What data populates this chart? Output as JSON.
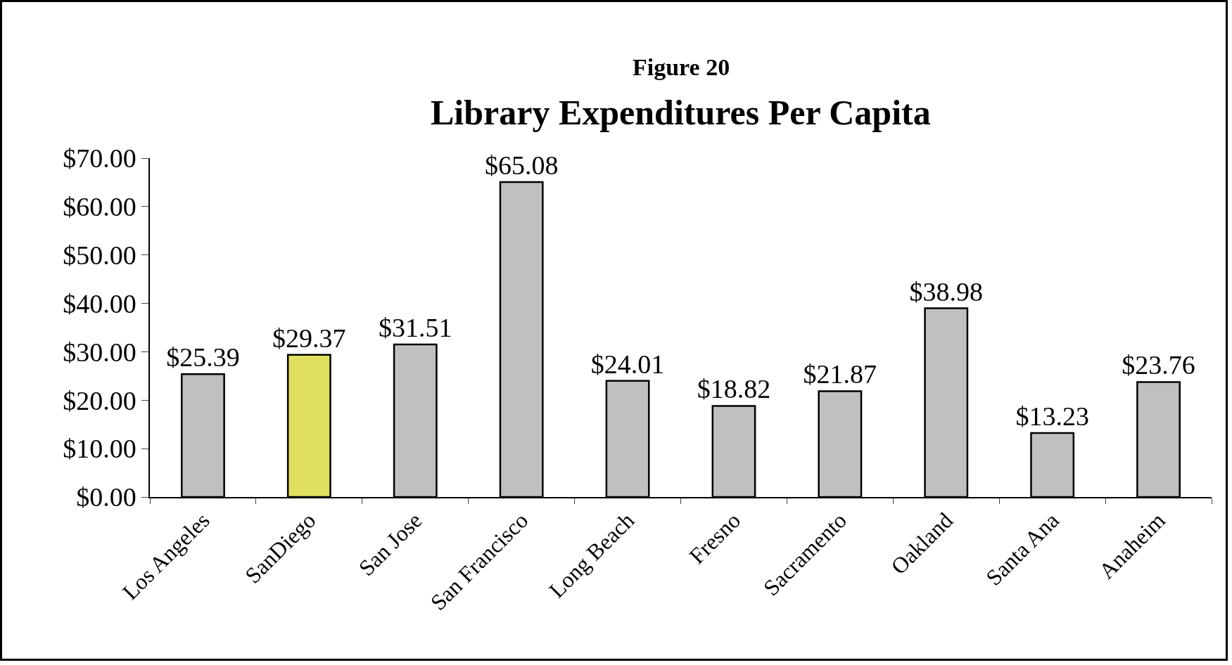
{
  "chart_data": {
    "type": "bar",
    "title": "Figure 20",
    "subtitle": "Library Expenditures Per Capita",
    "categories": [
      "Los Angeles",
      "SanDiego",
      "San Jose",
      "San Francisco",
      "Long Beach",
      "Fresno",
      "Sacramento",
      "Oakland",
      "Santa Ana",
      "Anaheim"
    ],
    "values": [
      25.39,
      29.37,
      31.51,
      65.08,
      24.01,
      18.82,
      21.87,
      38.98,
      13.23,
      23.76
    ],
    "value_labels": [
      "$25.39",
      "$29.37",
      "$31.51",
      "$65.08",
      "$24.01",
      "$18.82",
      "$21.87",
      "$38.98",
      "$13.23",
      "$23.76"
    ],
    "colors": [
      "#c0c0c0",
      "#e0e060",
      "#c0c0c0",
      "#c0c0c0",
      "#c0c0c0",
      "#c0c0c0",
      "#c0c0c0",
      "#c0c0c0",
      "#c0c0c0",
      "#c0c0c0"
    ],
    "ylim": [
      0,
      70
    ],
    "yticks": [
      {
        "value": 0,
        "label": "$0.00"
      },
      {
        "value": 10,
        "label": "$10.00"
      },
      {
        "value": 20,
        "label": "$20.00"
      },
      {
        "value": 30,
        "label": "$30.00"
      },
      {
        "value": 40,
        "label": "$40.00"
      },
      {
        "value": 50,
        "label": "$50.00"
      },
      {
        "value": 60,
        "label": "$60.00"
      },
      {
        "value": 70,
        "label": "$70.00"
      }
    ],
    "grid": false
  }
}
